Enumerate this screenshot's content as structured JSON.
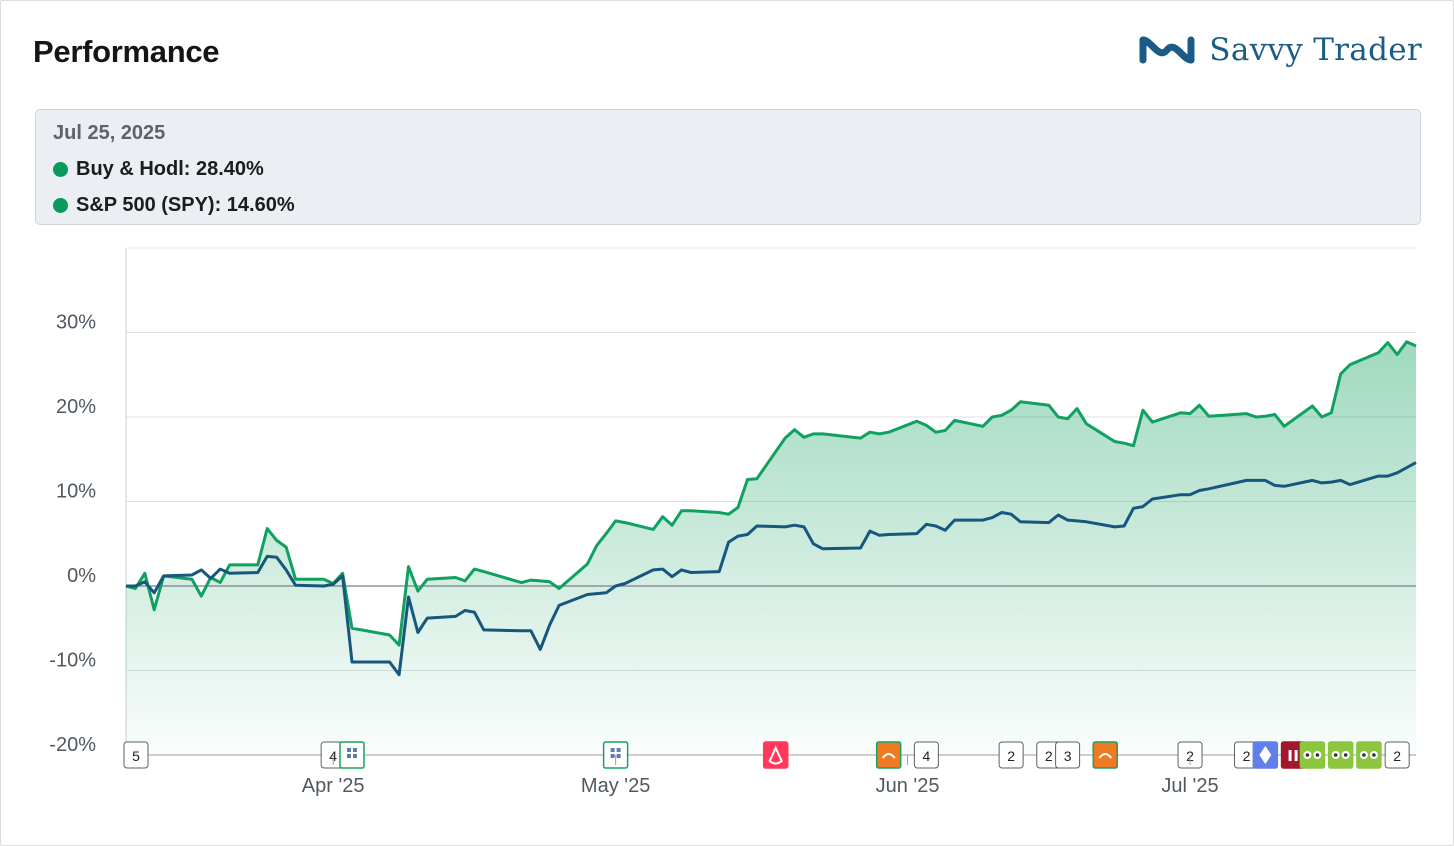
{
  "header": {
    "title": "Performance",
    "brand": "Savvy Trader"
  },
  "tooltip": {
    "date": "Jul 25, 2025",
    "series1": "Buy & Hodl: 28.40%",
    "series2": "S&P 500 (SPY): 14.60%"
  },
  "colors": {
    "portfolio": "#10a060",
    "benchmark": "#17577e",
    "fill": "#10a060",
    "brand": "#1b5c86"
  },
  "chart_data": {
    "type": "line",
    "title": "",
    "xlabel": "",
    "ylabel": "",
    "ylim": [
      -20,
      40
    ],
    "yticks": [
      -20,
      -10,
      0,
      10,
      20,
      30
    ],
    "ytick_labels": [
      "-20%",
      "-10%",
      "0%",
      "10%",
      "20%",
      "30%"
    ],
    "x_start": "Mar 10, 2025",
    "x_end": "Jul 25, 2025",
    "xticks": [
      {
        "label": "Apr '25",
        "date": "Apr 1, 2025"
      },
      {
        "label": "May '25",
        "date": "May 1, 2025"
      },
      {
        "label": "Jun '25",
        "date": "Jun 1, 2025"
      },
      {
        "label": "Jul '25",
        "date": "Jul 1, 2025"
      }
    ],
    "grid": true,
    "series": [
      {
        "name": "Buy & Hodl",
        "points": [
          [
            "Mar 10, 2025",
            0.0
          ],
          [
            "Mar 11, 2025",
            -0.3
          ],
          [
            "Mar 12, 2025",
            1.5
          ],
          [
            "Mar 13, 2025",
            -2.8
          ],
          [
            "Mar 14, 2025",
            1.2
          ],
          [
            "Mar 17, 2025",
            0.8
          ],
          [
            "Mar 18, 2025",
            -1.2
          ],
          [
            "Mar 19, 2025",
            1.0
          ],
          [
            "Mar 20, 2025",
            0.4
          ],
          [
            "Mar 21, 2025",
            2.5
          ],
          [
            "Mar 24, 2025",
            2.5
          ],
          [
            "Mar 25, 2025",
            6.8
          ],
          [
            "Mar 26, 2025",
            5.4
          ],
          [
            "Mar 27, 2025",
            4.6
          ],
          [
            "Mar 28, 2025",
            0.8
          ],
          [
            "Mar 31, 2025",
            0.8
          ],
          [
            "Apr 1, 2025",
            0.3
          ],
          [
            "Apr 2, 2025",
            1.5
          ],
          [
            "Apr 3, 2025",
            -5.0
          ],
          [
            "Apr 4, 2025",
            -5.2
          ],
          [
            "Apr 7, 2025",
            -5.8
          ],
          [
            "Apr 8, 2025",
            -7.0
          ],
          [
            "Apr 9, 2025",
            2.3
          ],
          [
            "Apr 10, 2025",
            -0.6
          ],
          [
            "Apr 11, 2025",
            0.8
          ],
          [
            "Apr 14, 2025",
            1.0
          ],
          [
            "Apr 15, 2025",
            0.6
          ],
          [
            "Apr 16, 2025",
            2.0
          ],
          [
            "Apr 17, 2025",
            1.7
          ],
          [
            "Apr 21, 2025",
            0.4
          ],
          [
            "Apr 22, 2025",
            0.7
          ],
          [
            "Apr 23, 2025",
            0.6
          ],
          [
            "Apr 24, 2025",
            0.5
          ],
          [
            "Apr 25, 2025",
            -0.3
          ],
          [
            "Apr 28, 2025",
            2.6
          ],
          [
            "Apr 29, 2025",
            4.8
          ],
          [
            "Apr 30, 2025",
            6.2
          ],
          [
            "May 1, 2025",
            7.7
          ],
          [
            "May 2, 2025",
            7.5
          ],
          [
            "May 5, 2025",
            6.7
          ],
          [
            "May 6, 2025",
            8.2
          ],
          [
            "May 7, 2025",
            7.2
          ],
          [
            "May 8, 2025",
            8.9
          ],
          [
            "May 9, 2025",
            8.9
          ],
          [
            "May 12, 2025",
            8.7
          ],
          [
            "May 13, 2025",
            8.5
          ],
          [
            "May 14, 2025",
            9.3
          ],
          [
            "May 15, 2025",
            12.6
          ],
          [
            "May 16, 2025",
            12.7
          ],
          [
            "May 19, 2025",
            17.5
          ],
          [
            "May 20, 2025",
            18.5
          ],
          [
            "May 21, 2025",
            17.6
          ],
          [
            "May 22, 2025",
            18.0
          ],
          [
            "May 23, 2025",
            18.0
          ],
          [
            "May 27, 2025",
            17.5
          ],
          [
            "May 28, 2025",
            18.2
          ],
          [
            "May 29, 2025",
            18.0
          ],
          [
            "May 30, 2025",
            18.2
          ],
          [
            "Jun 2, 2025",
            19.5
          ],
          [
            "Jun 3, 2025",
            19.0
          ],
          [
            "Jun 4, 2025",
            18.2
          ],
          [
            "Jun 5, 2025",
            18.4
          ],
          [
            "Jun 6, 2025",
            19.6
          ],
          [
            "Jun 9, 2025",
            18.9
          ],
          [
            "Jun 10, 2025",
            20.0
          ],
          [
            "Jun 11, 2025",
            20.2
          ],
          [
            "Jun 12, 2025",
            20.8
          ],
          [
            "Jun 13, 2025",
            21.8
          ],
          [
            "Jun 16, 2025",
            21.4
          ],
          [
            "Jun 17, 2025",
            20.0
          ],
          [
            "Jun 18, 2025",
            19.8
          ],
          [
            "Jun 19, 2025",
            21.0
          ],
          [
            "Jun 20, 2025",
            19.2
          ],
          [
            "Jun 23, 2025",
            17.1
          ],
          [
            "Jun 24, 2025",
            16.9
          ],
          [
            "Jun 25, 2025",
            16.6
          ],
          [
            "Jun 26, 2025",
            20.8
          ],
          [
            "Jun 27, 2025",
            19.4
          ],
          [
            "Jun 30, 2025",
            20.5
          ],
          [
            "Jul 1, 2025",
            20.4
          ],
          [
            "Jul 2, 2025",
            21.4
          ],
          [
            "Jul 3, 2025",
            20.1
          ],
          [
            "Jul 7, 2025",
            20.4
          ],
          [
            "Jul 8, 2025",
            20.0
          ],
          [
            "Jul 9, 2025",
            20.1
          ],
          [
            "Jul 10, 2025",
            20.3
          ],
          [
            "Jul 11, 2025",
            18.9
          ],
          [
            "Jul 14, 2025",
            21.3
          ],
          [
            "Jul 15, 2025",
            20.0
          ],
          [
            "Jul 16, 2025",
            20.5
          ],
          [
            "Jul 17, 2025",
            25.1
          ],
          [
            "Jul 18, 2025",
            26.2
          ],
          [
            "Jul 21, 2025",
            27.6
          ],
          [
            "Jul 22, 2025",
            28.8
          ],
          [
            "Jul 23, 2025",
            27.4
          ],
          [
            "Jul 24, 2025",
            28.9
          ],
          [
            "Jul 25, 2025",
            28.4
          ]
        ]
      },
      {
        "name": "S&P 500 (SPY)",
        "points": [
          [
            "Mar 10, 2025",
            0.0
          ],
          [
            "Mar 11, 2025",
            0.0
          ],
          [
            "Mar 12, 2025",
            0.5
          ],
          [
            "Mar 13, 2025",
            -0.8
          ],
          [
            "Mar 14, 2025",
            1.2
          ],
          [
            "Mar 17, 2025",
            1.3
          ],
          [
            "Mar 18, 2025",
            1.9
          ],
          [
            "Mar 19, 2025",
            0.9
          ],
          [
            "Mar 20, 2025",
            2.0
          ],
          [
            "Mar 21, 2025",
            1.5
          ],
          [
            "Mar 24, 2025",
            1.6
          ],
          [
            "Mar 25, 2025",
            3.5
          ],
          [
            "Mar 26, 2025",
            3.4
          ],
          [
            "Mar 27, 2025",
            1.9
          ],
          [
            "Mar 28, 2025",
            0.1
          ],
          [
            "Mar 31, 2025",
            0.0
          ],
          [
            "Apr 1, 2025",
            0.2
          ],
          [
            "Apr 2, 2025",
            1.2
          ],
          [
            "Apr 3, 2025",
            -9.0
          ],
          [
            "Apr 4, 2025",
            -9.0
          ],
          [
            "Apr 7, 2025",
            -9.0
          ],
          [
            "Apr 8, 2025",
            -10.5
          ],
          [
            "Apr 9, 2025",
            -1.3
          ],
          [
            "Apr 10, 2025",
            -5.5
          ],
          [
            "Apr 11, 2025",
            -3.8
          ],
          [
            "Apr 14, 2025",
            -3.6
          ],
          [
            "Apr 15, 2025",
            -2.9
          ],
          [
            "Apr 16, 2025",
            -3.1
          ],
          [
            "Apr 17, 2025",
            -5.2
          ],
          [
            "Apr 21, 2025",
            -5.3
          ],
          [
            "Apr 22, 2025",
            -5.3
          ],
          [
            "Apr 23, 2025",
            -7.5
          ],
          [
            "Apr 24, 2025",
            -4.6
          ],
          [
            "Apr 25, 2025",
            -2.3
          ],
          [
            "Apr 28, 2025",
            -1.0
          ],
          [
            "Apr 29, 2025",
            -0.9
          ],
          [
            "Apr 30, 2025",
            -0.8
          ],
          [
            "May 1, 2025",
            0.0
          ],
          [
            "May 2, 2025",
            0.3
          ],
          [
            "May 5, 2025",
            1.9
          ],
          [
            "May 6, 2025",
            2.0
          ],
          [
            "May 7, 2025",
            1.1
          ],
          [
            "May 8, 2025",
            1.9
          ],
          [
            "May 9, 2025",
            1.6
          ],
          [
            "May 12, 2025",
            1.7
          ],
          [
            "May 13, 2025",
            5.2
          ],
          [
            "May 14, 2025",
            5.9
          ],
          [
            "May 15, 2025",
            6.1
          ],
          [
            "May 16, 2025",
            7.1
          ],
          [
            "May 19, 2025",
            7.0
          ],
          [
            "May 20, 2025",
            7.2
          ],
          [
            "May 21, 2025",
            7.0
          ],
          [
            "May 22, 2025",
            5.0
          ],
          [
            "May 23, 2025",
            4.4
          ],
          [
            "May 27, 2025",
            4.5
          ],
          [
            "May 28, 2025",
            6.5
          ],
          [
            "May 29, 2025",
            6.0
          ],
          [
            "May 30, 2025",
            6.1
          ],
          [
            "Jun 2, 2025",
            6.2
          ],
          [
            "Jun 3, 2025",
            7.3
          ],
          [
            "Jun 4, 2025",
            7.1
          ],
          [
            "Jun 5, 2025",
            6.6
          ],
          [
            "Jun 6, 2025",
            7.8
          ],
          [
            "Jun 9, 2025",
            7.8
          ],
          [
            "Jun 10, 2025",
            8.1
          ],
          [
            "Jun 11, 2025",
            8.7
          ],
          [
            "Jun 12, 2025",
            8.5
          ],
          [
            "Jun 13, 2025",
            7.6
          ],
          [
            "Jun 16, 2025",
            7.5
          ],
          [
            "Jun 17, 2025",
            8.4
          ],
          [
            "Jun 18, 2025",
            7.8
          ],
          [
            "Jun 19, 2025",
            7.7
          ],
          [
            "Jun 20, 2025",
            7.6
          ],
          [
            "Jun 23, 2025",
            7.0
          ],
          [
            "Jun 24, 2025",
            7.1
          ],
          [
            "Jun 25, 2025",
            9.2
          ],
          [
            "Jun 26, 2025",
            9.4
          ],
          [
            "Jun 27, 2025",
            10.3
          ],
          [
            "Jun 30, 2025",
            10.8
          ],
          [
            "Jul 1, 2025",
            10.8
          ],
          [
            "Jul 2, 2025",
            11.3
          ],
          [
            "Jul 3, 2025",
            11.5
          ],
          [
            "Jul 7, 2025",
            12.5
          ],
          [
            "Jul 8, 2025",
            12.5
          ],
          [
            "Jul 9, 2025",
            12.5
          ],
          [
            "Jul 10, 2025",
            11.9
          ],
          [
            "Jul 11, 2025",
            11.8
          ],
          [
            "Jul 14, 2025",
            12.5
          ],
          [
            "Jul 15, 2025",
            12.2
          ],
          [
            "Jul 16, 2025",
            12.3
          ],
          [
            "Jul 17, 2025",
            12.5
          ],
          [
            "Jul 18, 2025",
            12.0
          ],
          [
            "Jul 21, 2025",
            13.0
          ],
          [
            "Jul 22, 2025",
            13.0
          ],
          [
            "Jul 23, 2025",
            13.4
          ],
          [
            "Jul 24, 2025",
            14.0
          ],
          [
            "Jul 25, 2025",
            14.6
          ]
        ]
      }
    ],
    "trade_markers": [
      {
        "date": "Mar 10, 2025",
        "label": "5"
      },
      {
        "date": "Apr 1, 2025",
        "label": "4"
      },
      {
        "date": "Apr 3, 2025",
        "icon": "shares-icon"
      },
      {
        "date": "May 1, 2025",
        "icon": "shares-icon"
      },
      {
        "date": "May 18, 2025",
        "icon": "airbnb-icon"
      },
      {
        "date": "May 30, 2025",
        "icon": "orange-logo-icon"
      },
      {
        "date": "Jun 3, 2025",
        "label": "4"
      },
      {
        "date": "Jun 12, 2025",
        "label": "2"
      },
      {
        "date": "Jun 16, 2025",
        "label": "2"
      },
      {
        "date": "Jun 18, 2025",
        "label": "3"
      },
      {
        "date": "Jun 22, 2025",
        "icon": "orange-logo-icon"
      },
      {
        "date": "Jul 1, 2025",
        "label": "2"
      },
      {
        "date": "Jul 7, 2025",
        "label": "2"
      },
      {
        "date": "Jul 9, 2025",
        "icon": "ethereum-icon"
      },
      {
        "date": "Jul 12, 2025",
        "icon": "red-logo-icon"
      },
      {
        "date": "Jul 14, 2025",
        "icon": "owl-icon"
      },
      {
        "date": "Jul 17, 2025",
        "icon": "owl-icon"
      },
      {
        "date": "Jul 20, 2025",
        "icon": "owl-icon"
      },
      {
        "date": "Jul 23, 2025",
        "label": "2"
      }
    ]
  }
}
